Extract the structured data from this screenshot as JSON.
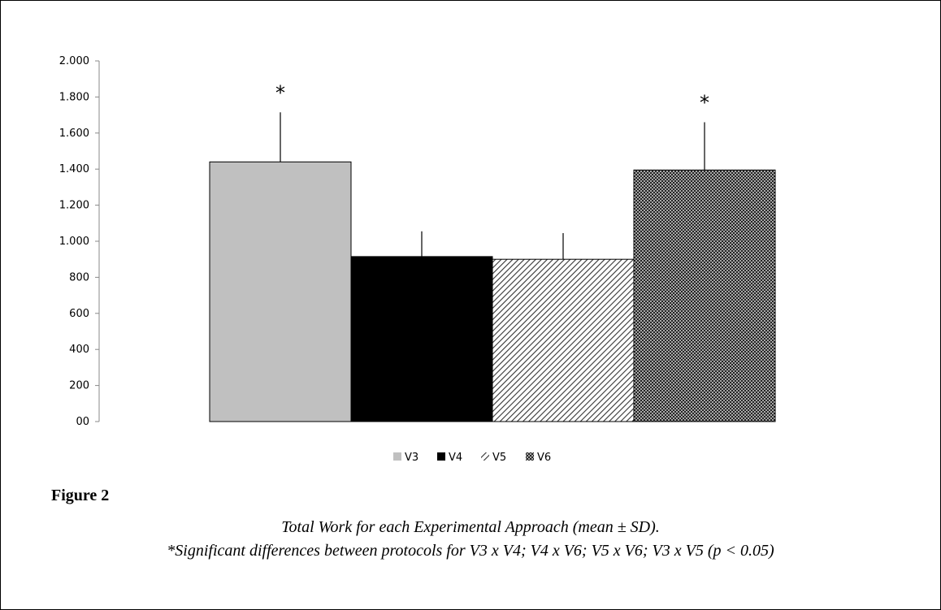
{
  "chart_data": {
    "type": "bar",
    "categories": [
      "V3",
      "V4",
      "V5",
      "V6"
    ],
    "values": [
      1440,
      915,
      900,
      1395
    ],
    "error_sd": [
      275,
      140,
      145,
      265
    ],
    "significance": [
      "*",
      "",
      "",
      "*"
    ],
    "ylim": [
      0,
      2000
    ],
    "yticks": [
      0,
      200,
      400,
      600,
      800,
      1000,
      1200,
      1400,
      1600,
      1800,
      2000
    ],
    "ytick_labels": [
      "00",
      "200",
      "400",
      "600",
      "800",
      "1.000",
      "1.200",
      "1.400",
      "1.600",
      "1.800",
      "2.000"
    ],
    "grid": false,
    "legend": {
      "position": "bottom",
      "entries": [
        "V3",
        "V4",
        "V5",
        "V6"
      ]
    },
    "fills": [
      "solid-light-gray",
      "solid-black",
      "diagonal-hatch",
      "crosshatch"
    ],
    "colors": {
      "V3": "#c0c0c0",
      "V4": "#000000",
      "V5_hatch": "#333333",
      "V6_hatch": "#222222"
    }
  },
  "figure": {
    "label": "Figure 2",
    "caption_line1": "Total Work for each Experimental Approach (mean ± SD).",
    "caption_line2": "*Significant differences between protocols for V3 x V4; V4 x V6; V5 x V6; V3 x V5 (p < 0.05)"
  }
}
